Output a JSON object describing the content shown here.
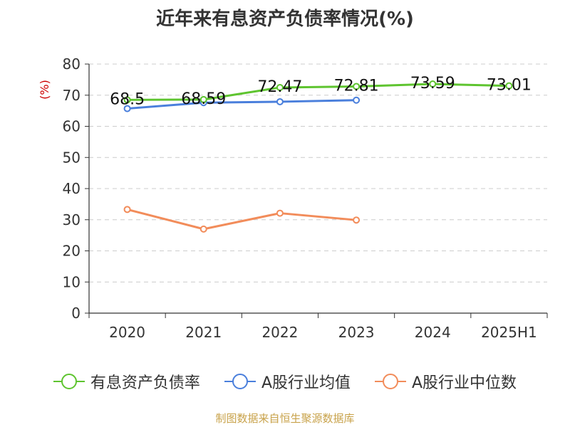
{
  "chart_data": {
    "type": "line",
    "title": "近年来有息资产负债率情况(%)",
    "ylabel": "(%)",
    "xlabel": "",
    "categories": [
      "2020",
      "2021",
      "2022",
      "2023",
      "2024",
      "2025H1"
    ],
    "ylim": [
      0,
      80
    ],
    "yticks": [
      0,
      10,
      20,
      30,
      40,
      50,
      60,
      70,
      80
    ],
    "grid": true,
    "legend_position": "bottom",
    "series": [
      {
        "name": "有息资产负债率",
        "color": "#5ec42f",
        "values": [
          68.5,
          68.59,
          72.47,
          72.81,
          73.59,
          73.01
        ],
        "labels": [
          "68.5",
          "68.59",
          "72.47",
          "72.81",
          "73.59",
          "73.01"
        ]
      },
      {
        "name": "A股行业均值",
        "color": "#4a7fdc",
        "values": [
          65.7,
          67.6,
          67.9,
          68.4,
          null,
          null
        ]
      },
      {
        "name": "A股行业中位数",
        "color": "#f28c5a",
        "values": [
          33.3,
          27.0,
          32.1,
          29.9,
          null,
          null
        ]
      }
    ]
  },
  "source_note": "制图数据来自恒生聚源数据库",
  "colors": {
    "axis": "#333333",
    "grid": "#cccccc",
    "ylabel": "#cc0000",
    "source": "#c8a24a"
  }
}
